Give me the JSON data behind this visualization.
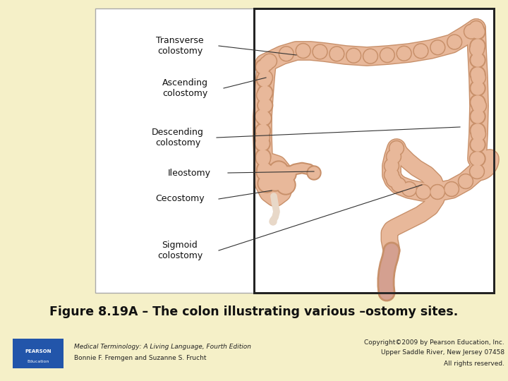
{
  "background_color": "#f5f0c8",
  "fig_width": 7.2,
  "fig_height": 5.4,
  "dpi": 100,
  "title": "Figure 8.19A – The colon illustrating various –ostomy sites.",
  "title_fontsize": 12.5,
  "title_fontweight": "bold",
  "footer_left_line1": "Medical Terminology: A Living Language, Fourth Edition",
  "footer_left_line2": "Bonnie F. Fremgen and Suzanne S. Frucht",
  "footer_right_line1": "Copyright©2009 by Pearson Education, Inc.",
  "footer_right_line2": "Upper Saddle River, New Jersey 07458",
  "footer_right_line3": "All rights reserved.",
  "footer_fontsize": 6.5,
  "colon_fill": "#e8b89a",
  "colon_edge": "#c8906a",
  "colon_lw": 18,
  "colon_lw_edge": 20,
  "bump_fill": "#e8b89a",
  "bump_edge": "#c8906a",
  "sigmoid_fill": "#dba888",
  "rectum_fill": "#d4a090",
  "pearson_blue": "#2255aa"
}
